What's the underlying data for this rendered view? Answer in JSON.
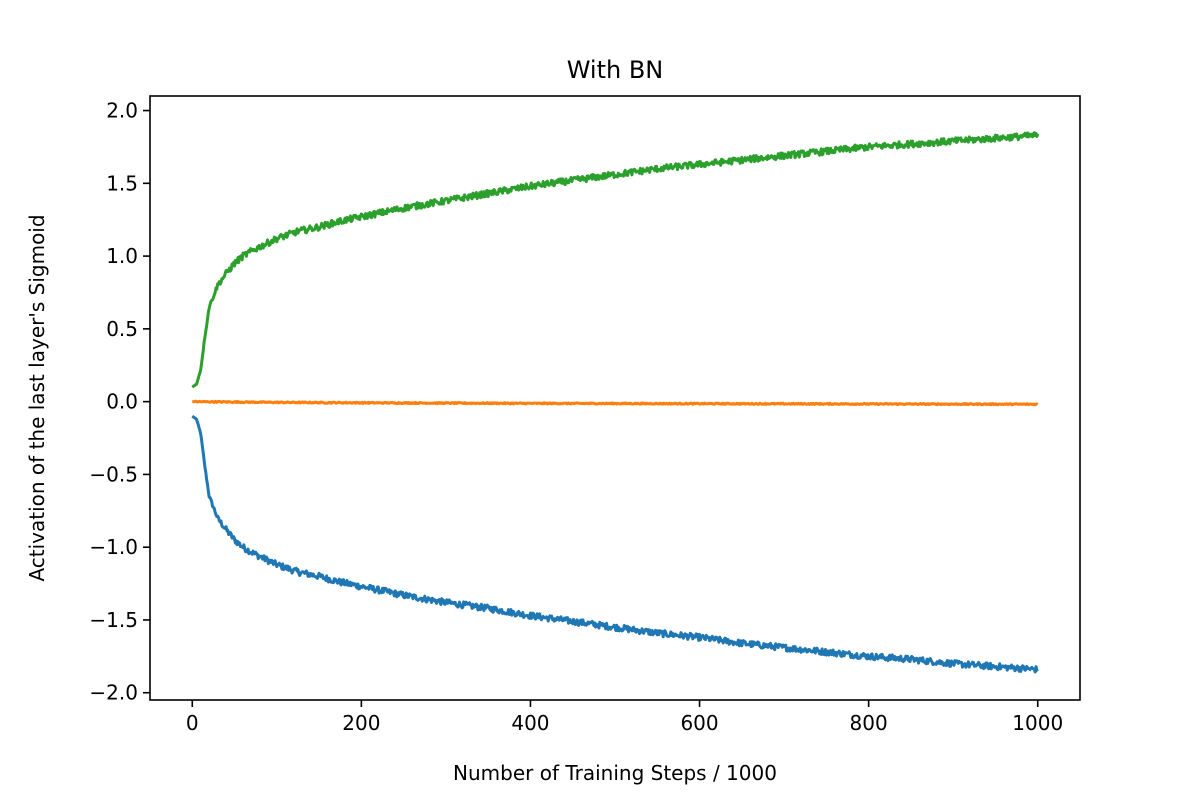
{
  "chart_data": {
    "type": "line",
    "title": "With BN",
    "xlabel": "Number of Training Steps / 1000",
    "ylabel": "Activation of the last layer's Sigmoid",
    "xlim": [
      -50,
      1050
    ],
    "ylim": [
      -2.05,
      2.1
    ],
    "x_ticks": [
      0,
      200,
      400,
      600,
      800,
      1000
    ],
    "y_ticks": [
      -2.0,
      -1.5,
      -1.0,
      -0.5,
      0.0,
      0.5,
      1.0,
      1.5,
      2.0
    ],
    "x_tick_labels": [
      "0",
      "200",
      "400",
      "600",
      "800",
      "1000"
    ],
    "y_tick_labels": [
      "−2.0",
      "−1.5",
      "−1.0",
      "−0.5",
      "0.0",
      "0.5",
      "1.0",
      "1.5",
      "2.0"
    ],
    "grid": false,
    "series": [
      {
        "color": "#1f77b4",
        "x": [
          0,
          5,
          10,
          15,
          20,
          30,
          40,
          50,
          60,
          75,
          100,
          125,
          150,
          175,
          200,
          250,
          300,
          350,
          400,
          450,
          500,
          550,
          600,
          650,
          700,
          750,
          800,
          850,
          900,
          950,
          1000
        ],
        "values": [
          -0.1,
          -0.12,
          -0.22,
          -0.45,
          -0.65,
          -0.8,
          -0.88,
          -0.95,
          -1.0,
          -1.05,
          -1.12,
          -1.17,
          -1.2,
          -1.24,
          -1.27,
          -1.33,
          -1.38,
          -1.42,
          -1.47,
          -1.51,
          -1.55,
          -1.59,
          -1.62,
          -1.66,
          -1.69,
          -1.72,
          -1.75,
          -1.77,
          -1.8,
          -1.82,
          -1.84
        ]
      },
      {
        "color": "#ff7f0e",
        "x": [
          0,
          100,
          200,
          300,
          400,
          500,
          600,
          700,
          800,
          900,
          1000
        ],
        "values": [
          0.0,
          -0.005,
          -0.008,
          -0.01,
          -0.012,
          -0.013,
          -0.014,
          -0.015,
          -0.016,
          -0.017,
          -0.018
        ]
      },
      {
        "color": "#2ca02c",
        "x": [
          0,
          5,
          10,
          15,
          20,
          30,
          40,
          50,
          60,
          75,
          100,
          125,
          150,
          175,
          200,
          250,
          300,
          350,
          400,
          450,
          500,
          550,
          600,
          650,
          700,
          750,
          800,
          850,
          900,
          950,
          1000
        ],
        "values": [
          0.1,
          0.12,
          0.22,
          0.45,
          0.65,
          0.8,
          0.88,
          0.95,
          1.0,
          1.05,
          1.12,
          1.17,
          1.2,
          1.24,
          1.27,
          1.33,
          1.38,
          1.43,
          1.48,
          1.52,
          1.56,
          1.6,
          1.63,
          1.66,
          1.69,
          1.72,
          1.75,
          1.77,
          1.79,
          1.81,
          1.83
        ]
      }
    ]
  }
}
